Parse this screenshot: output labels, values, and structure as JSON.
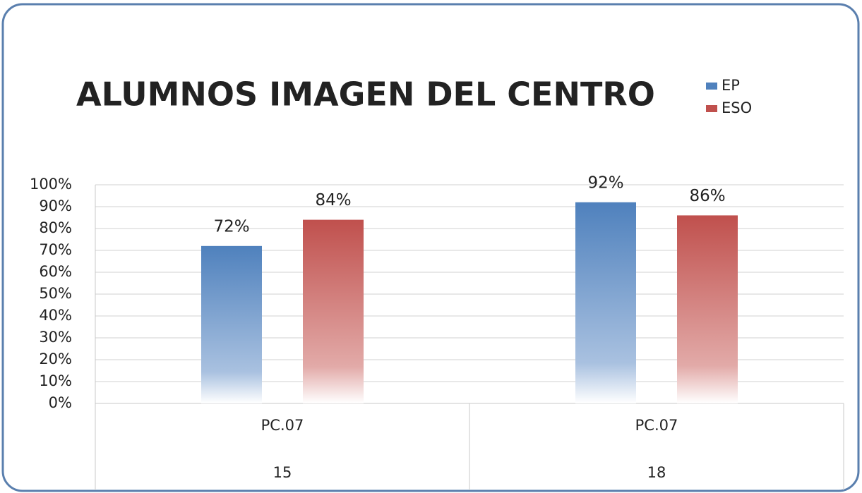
{
  "chart_data": {
    "type": "bar",
    "title": "ALUMNOS IMAGEN DEL CENTRO",
    "categories": [
      [
        "PC.07",
        "15"
      ],
      [
        "PC.07",
        "18"
      ]
    ],
    "series": [
      {
        "name": "EP",
        "color": "#4f81bd",
        "values": [
          72,
          92
        ],
        "value_labels": [
          "72%",
          "92%"
        ]
      },
      {
        "name": "ESO",
        "color": "#c0504d",
        "values": [
          84,
          86
        ],
        "value_labels": [
          "84%",
          "86%"
        ]
      }
    ],
    "ylim": [
      0,
      100
    ],
    "yticks": [
      {
        "value": 0,
        "label": "0%"
      },
      {
        "value": 10,
        "label": "10%"
      },
      {
        "value": 20,
        "label": "20%"
      },
      {
        "value": 30,
        "label": "30%"
      },
      {
        "value": 40,
        "label": "40%"
      },
      {
        "value": 50,
        "label": "50%"
      },
      {
        "value": 60,
        "label": "60%"
      },
      {
        "value": 70,
        "label": "70%"
      },
      {
        "value": 80,
        "label": "80%"
      },
      {
        "value": 90,
        "label": "90%"
      },
      {
        "value": 100,
        "label": "100%"
      }
    ],
    "grid": true,
    "legend": "top-right"
  }
}
